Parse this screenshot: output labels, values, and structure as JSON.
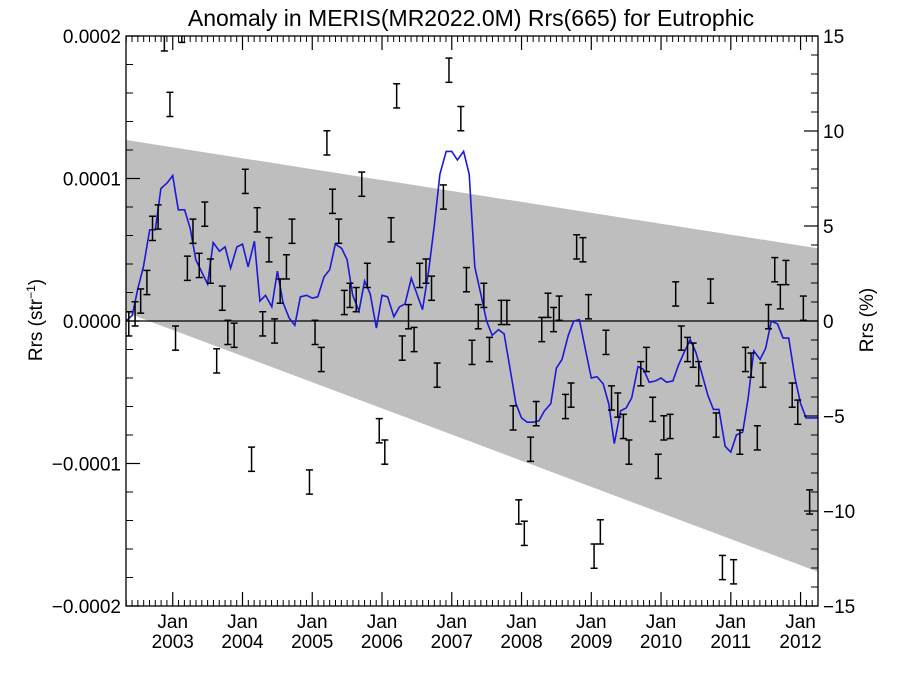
{
  "chart_data": {
    "type": "scatter",
    "title": "Anomaly in MERIS(MR2022.0M) Rrs(665) for Eutrophic",
    "ylabel_left_main": "Rrs (str",
    "ylabel_left_sup": "−1",
    "ylabel_left_close": ")",
    "ylabel_right": "Rrs (%)",
    "xlim": [
      2002.33,
      2012.25
    ],
    "ylim_left": [
      -0.0002,
      0.0002
    ],
    "ylim_right": [
      -15,
      15
    ],
    "x_ticks": [
      {
        "x": 2003.0,
        "label": "2003"
      },
      {
        "x": 2004.0,
        "label": "2004"
      },
      {
        "x": 2005.0,
        "label": "2005"
      },
      {
        "x": 2006.0,
        "label": "2006"
      },
      {
        "x": 2007.0,
        "label": "2007"
      },
      {
        "x": 2008.0,
        "label": "2008"
      },
      {
        "x": 2009.0,
        "label": "2009"
      },
      {
        "x": 2010.0,
        "label": "2010"
      },
      {
        "x": 2011.0,
        "label": "2011"
      },
      {
        "x": 2012.0,
        "label": "2012"
      }
    ],
    "x_tick_month_label": "Jan",
    "y_ticks_left": [
      {
        "v": 0.0002,
        "label": "0.0002"
      },
      {
        "v": 0.0001,
        "label": "0.0001"
      },
      {
        "v": 0.0,
        "label": "0.0000"
      },
      {
        "v": -0.0001,
        "label": "−0.0001"
      },
      {
        "v": -0.0002,
        "label": "−0.0002"
      }
    ],
    "y_ticks_right": [
      {
        "v": 15,
        "label": "15"
      },
      {
        "v": 10,
        "label": "10"
      },
      {
        "v": 5,
        "label": "5"
      },
      {
        "v": 0,
        "label": "0"
      },
      {
        "v": -5,
        "label": "−5"
      },
      {
        "v": -10,
        "label": "−10"
      },
      {
        "v": -15,
        "label": "−15"
      }
    ],
    "zero_line": 0,
    "trend_envelope": {
      "x": [
        2002.33,
        2012.25
      ],
      "upper": [
        0.000127,
        5.1e-05
      ],
      "lower": [
        6e-06,
        -0.000176
      ]
    },
    "error_bar_halfwidth": 8.5e-06,
    "points": [
      {
        "x": 2002.37,
        "y": -2e-06
      },
      {
        "x": 2002.46,
        "y": 5e-06
      },
      {
        "x": 2002.54,
        "y": 1.4e-05
      },
      {
        "x": 2002.63,
        "y": 2.7e-05
      },
      {
        "x": 2002.71,
        "y": 6.5e-05
      },
      {
        "x": 2002.79,
        "y": 7.3e-05
      },
      {
        "x": 2002.88,
        "y": 0.000198
      },
      {
        "x": 2002.96,
        "y": 0.000152
      },
      {
        "x": 2003.04,
        "y": -1.2e-05
      },
      {
        "x": 2003.13,
        "y": 0.000204
      },
      {
        "x": 2003.21,
        "y": 3.7e-05
      },
      {
        "x": 2003.29,
        "y": 6.3e-05
      },
      {
        "x": 2003.38,
        "y": 3.9e-05
      },
      {
        "x": 2003.46,
        "y": 7.5e-05
      },
      {
        "x": 2003.54,
        "y": 3.5e-05
      },
      {
        "x": 2003.63,
        "y": -2.8e-05
      },
      {
        "x": 2003.71,
        "y": 1.6e-05
      },
      {
        "x": 2003.79,
        "y": -8e-06
      },
      {
        "x": 2003.88,
        "y": -1e-05
      },
      {
        "x": 2004.04,
        "y": 9.8e-05
      },
      {
        "x": 2004.13,
        "y": -9.7e-05
      },
      {
        "x": 2004.21,
        "y": 7.1e-05
      },
      {
        "x": 2004.29,
        "y": -2e-06
      },
      {
        "x": 2004.38,
        "y": 5e-05
      },
      {
        "x": 2004.46,
        "y": -7e-06
      },
      {
        "x": 2004.54,
        "y": 2.1e-05
      },
      {
        "x": 2004.63,
        "y": 3.8e-05
      },
      {
        "x": 2004.71,
        "y": 6.3e-05
      },
      {
        "x": 2004.96,
        "y": -0.000113
      },
      {
        "x": 2005.04,
        "y": -8e-06
      },
      {
        "x": 2005.13,
        "y": -2.7e-05
      },
      {
        "x": 2005.21,
        "y": 0.000125
      },
      {
        "x": 2005.29,
        "y": 8.4e-05
      },
      {
        "x": 2005.38,
        "y": 6.3e-05
      },
      {
        "x": 2005.46,
        "y": 1.3e-05
      },
      {
        "x": 2005.54,
        "y": 1.8e-05
      },
      {
        "x": 2005.63,
        "y": 1.5e-05
      },
      {
        "x": 2005.71,
        "y": 9.6e-05
      },
      {
        "x": 2005.79,
        "y": 3.2e-05
      },
      {
        "x": 2005.96,
        "y": -7.7e-05
      },
      {
        "x": 2006.04,
        "y": -9.2e-05
      },
      {
        "x": 2006.13,
        "y": 6.4e-05
      },
      {
        "x": 2006.21,
        "y": 0.000158
      },
      {
        "x": 2006.29,
        "y": -1.9e-05
      },
      {
        "x": 2006.38,
        "y": 3e-06
      },
      {
        "x": 2006.46,
        "y": -1.3e-05
      },
      {
        "x": 2006.54,
        "y": 3.2e-05
      },
      {
        "x": 2006.63,
        "y": 3.5e-05
      },
      {
        "x": 2006.71,
        "y": 2.3e-05
      },
      {
        "x": 2006.79,
        "y": -3.8e-05
      },
      {
        "x": 2006.88,
        "y": 8.7e-05
      },
      {
        "x": 2006.96,
        "y": 0.000176
      },
      {
        "x": 2007.13,
        "y": 0.000142
      },
      {
        "x": 2007.21,
        "y": 2.9e-05
      },
      {
        "x": 2007.29,
        "y": -2.2e-05
      },
      {
        "x": 2007.38,
        "y": 3e-06
      },
      {
        "x": 2007.46,
        "y": 1.8e-05
      },
      {
        "x": 2007.54,
        "y": -2e-05
      },
      {
        "x": 2007.71,
        "y": 6e-06
      },
      {
        "x": 2007.79,
        "y": 6e-06
      },
      {
        "x": 2007.88,
        "y": -6.8e-05
      },
      {
        "x": 2007.96,
        "y": -0.000134
      },
      {
        "x": 2008.04,
        "y": -0.000149
      },
      {
        "x": 2008.13,
        "y": -9e-05
      },
      {
        "x": 2008.21,
        "y": -6.5e-05
      },
      {
        "x": 2008.29,
        "y": -6e-06
      },
      {
        "x": 2008.38,
        "y": 1.1e-05
      },
      {
        "x": 2008.46,
        "y": 1e-06
      },
      {
        "x": 2008.54,
        "y": 9e-06
      },
      {
        "x": 2008.63,
        "y": -6e-05
      },
      {
        "x": 2008.71,
        "y": -5.2e-05
      },
      {
        "x": 2008.79,
        "y": 5.2e-05
      },
      {
        "x": 2008.88,
        "y": 5e-05
      },
      {
        "x": 2008.96,
        "y": 1e-05
      },
      {
        "x": 2009.04,
        "y": -0.000165
      },
      {
        "x": 2009.13,
        "y": -0.000148
      },
      {
        "x": 2009.21,
        "y": -1.5e-05
      },
      {
        "x": 2009.29,
        "y": -5.4e-05
      },
      {
        "x": 2009.38,
        "y": -5.9e-05
      },
      {
        "x": 2009.46,
        "y": -7.4e-05
      },
      {
        "x": 2009.54,
        "y": -9.2e-05
      },
      {
        "x": 2009.71,
        "y": -3.7e-05
      },
      {
        "x": 2009.79,
        "y": -2.7e-05
      },
      {
        "x": 2009.88,
        "y": -6.2e-05
      },
      {
        "x": 2009.96,
        "y": -0.000102
      },
      {
        "x": 2010.04,
        "y": -7.5e-05
      },
      {
        "x": 2010.13,
        "y": -7.4e-05
      },
      {
        "x": 2010.21,
        "y": 1.9e-05
      },
      {
        "x": 2010.29,
        "y": -1.2e-05
      },
      {
        "x": 2010.38,
        "y": -2e-05
      },
      {
        "x": 2010.46,
        "y": -2.4e-05
      },
      {
        "x": 2010.54,
        "y": -3.7e-05
      },
      {
        "x": 2010.71,
        "y": 2.1e-05
      },
      {
        "x": 2010.79,
        "y": -7.3e-05
      },
      {
        "x": 2010.88,
        "y": -0.000173
      },
      {
        "x": 2011.04,
        "y": -0.000176
      },
      {
        "x": 2011.13,
        "y": -8.5e-05
      },
      {
        "x": 2011.21,
        "y": -2.7e-05
      },
      {
        "x": 2011.29,
        "y": -3.1e-05
      },
      {
        "x": 2011.38,
        "y": -8.2e-05
      },
      {
        "x": 2011.46,
        "y": -3.8e-05
      },
      {
        "x": 2011.54,
        "y": 3e-06
      },
      {
        "x": 2011.63,
        "y": 3.6e-05
      },
      {
        "x": 2011.71,
        "y": 1.7e-05
      },
      {
        "x": 2011.79,
        "y": 3.4e-05
      },
      {
        "x": 2011.88,
        "y": -5.2e-05
      },
      {
        "x": 2011.96,
        "y": -6.4e-05
      },
      {
        "x": 2012.04,
        "y": 9e-06
      },
      {
        "x": 2012.13,
        "y": -0.000127
      }
    ],
    "smooth_line": {
      "color": "#1a1ad6",
      "x": [
        2002.33,
        2002.42,
        2002.5,
        2002.58,
        2002.67,
        2002.75,
        2002.83,
        2002.92,
        2003.0,
        2003.08,
        2003.17,
        2003.25,
        2003.33,
        2003.42,
        2003.5,
        2003.58,
        2003.67,
        2003.75,
        2003.83,
        2003.92,
        2004.0,
        2004.08,
        2004.17,
        2004.25,
        2004.33,
        2004.42,
        2004.5,
        2004.58,
        2004.67,
        2004.75,
        2004.83,
        2004.92,
        2005.0,
        2005.08,
        2005.17,
        2005.25,
        2005.33,
        2005.42,
        2005.5,
        2005.58,
        2005.67,
        2005.75,
        2005.83,
        2005.92,
        2006.0,
        2006.08,
        2006.17,
        2006.25,
        2006.33,
        2006.42,
        2006.5,
        2006.58,
        2006.67,
        2006.75,
        2006.83,
        2006.92,
        2007.0,
        2007.08,
        2007.17,
        2007.25,
        2007.33,
        2007.42,
        2007.5,
        2007.58,
        2007.67,
        2007.75,
        2007.83,
        2007.92,
        2008.0,
        2008.08,
        2008.17,
        2008.25,
        2008.33,
        2008.42,
        2008.5,
        2008.58,
        2008.67,
        2008.75,
        2008.83,
        2008.92,
        2009.0,
        2009.08,
        2009.17,
        2009.25,
        2009.33,
        2009.42,
        2009.5,
        2009.58,
        2009.67,
        2009.75,
        2009.83,
        2009.92,
        2010.0,
        2010.08,
        2010.17,
        2010.25,
        2010.33,
        2010.42,
        2010.5,
        2010.58,
        2010.67,
        2010.75,
        2010.83,
        2010.92,
        2011.0,
        2011.08,
        2011.17,
        2011.25,
        2011.33,
        2011.42,
        2011.5,
        2011.58,
        2011.67,
        2011.75,
        2011.83,
        2011.92,
        2012.0,
        2012.08,
        2012.17,
        2012.25
      ],
      "y": [
        0.0,
        4e-06,
        2.3e-05,
        3.8e-05,
        6.4e-05,
        6.4e-05,
        9.3e-05,
        9.7e-05,
        0.000102,
        7.8e-05,
        7.8e-05,
        6.5e-05,
        4.3e-05,
        3.4e-05,
        2.6e-05,
        5.5e-05,
        4.9e-05,
        5.2e-05,
        3.7e-05,
        5.2e-05,
        5.4e-05,
        3.8e-05,
        5.6e-05,
        1.4e-05,
        1.8e-05,
        1e-05,
        3.5e-05,
        1.3e-05,
        2e-06,
        -3e-06,
        1.7e-05,
        1.8e-05,
        1.6e-05,
        1.7e-05,
        3.1e-05,
        3.6e-05,
        5.4e-05,
        5.1e-05,
        4.3e-05,
        1.8e-05,
        7e-06,
        2.8e-05,
        1.9e-05,
        -5e-06,
        1.8e-05,
        1.7e-05,
        3e-06,
        1e-05,
        1.2e-05,
        3e-05,
        1.9e-05,
        8e-06,
        3.6e-05,
        6.7e-05,
        0.000103,
        0.000119,
        0.000119,
        0.000113,
        0.000119,
        0.000103,
        3.8e-05,
        1.8e-05,
        0.0,
        -1e-05,
        -6e-06,
        -9e-06,
        -3.2e-05,
        -5.8e-05,
        -6.8e-05,
        -7.1e-05,
        -7.1e-05,
        -7e-05,
        -6.3e-05,
        -5.8e-05,
        -3.3e-05,
        -2.7e-05,
        -1e-05,
        0.0,
        1e-06,
        -2.1e-05,
        -4e-05,
        -3.9e-05,
        -4.4e-05,
        -5.8e-05,
        -8.6e-05,
        -6.3e-05,
        -6.1e-05,
        -5.4e-05,
        -3.2e-05,
        -3.4e-05,
        -4.3e-05,
        -4.2e-05,
        -4e-05,
        -4.3e-05,
        -4.2e-05,
        -3.1e-05,
        -2.2e-05,
        -1.3e-05,
        -2.2e-05,
        -3.6e-05,
        -5.2e-05,
        -6.2e-05,
        -6.2e-05,
        -8.8e-05,
        -9.2e-05,
        -8e-05,
        -7.8e-05,
        -5.4e-05,
        -2.1e-05,
        -2.7e-05,
        -1.9e-05,
        0.0,
        -2e-06,
        -1.2e-05,
        -1.2e-05,
        -4e-05,
        -5.8e-05,
        -6.8e-05,
        -6.8e-05,
        -6.8e-05
      ]
    }
  }
}
